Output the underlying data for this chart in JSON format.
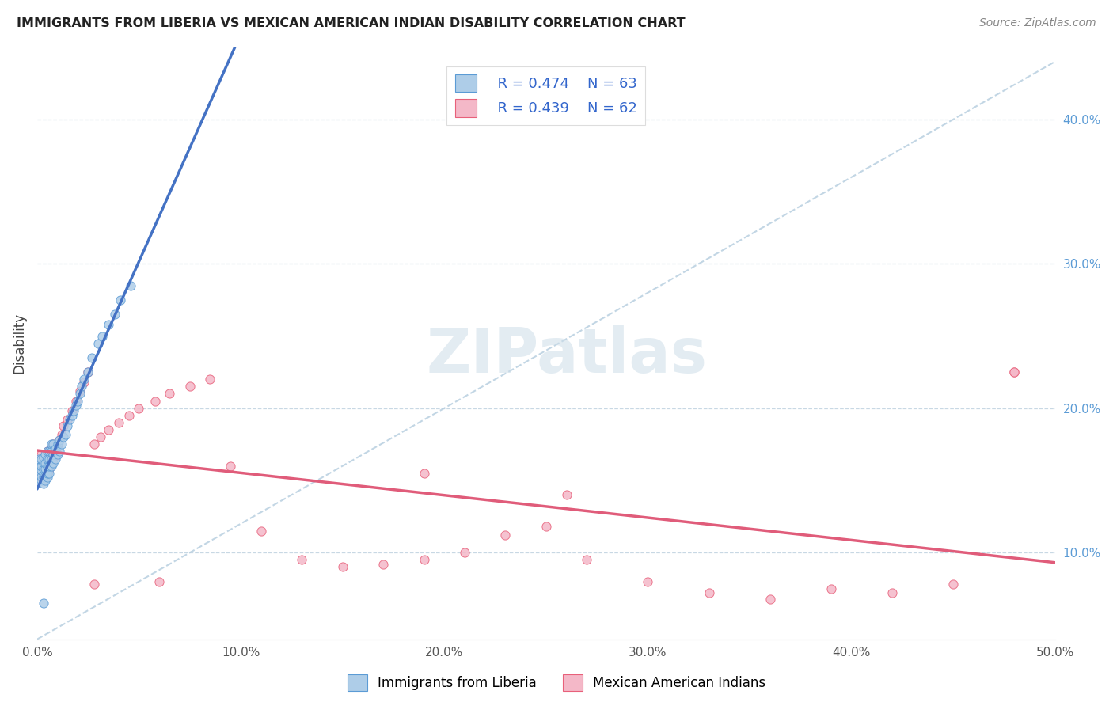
{
  "title": "IMMIGRANTS FROM LIBERIA VS MEXICAN AMERICAN INDIAN DISABILITY CORRELATION CHART",
  "source": "Source: ZipAtlas.com",
  "ylabel": "Disability",
  "xlim": [
    0.0,
    0.5
  ],
  "ylim": [
    0.04,
    0.45
  ],
  "legend_R1": "R = 0.474",
  "legend_N1": "N = 63",
  "legend_R2": "R = 0.439",
  "legend_N2": "N = 62",
  "color_blue_fill": "#aecde8",
  "color_blue_edge": "#5b9bd5",
  "color_pink_fill": "#f4b8c8",
  "color_pink_edge": "#e8607a",
  "color_line_blue": "#4472c4",
  "color_line_pink": "#e05c7a",
  "color_dashed": "#b8cfe0",
  "watermark": "ZIPatlas",
  "blue_x": [
    0.001,
    0.001,
    0.001,
    0.001,
    0.002,
    0.002,
    0.002,
    0.002,
    0.002,
    0.003,
    0.003,
    0.003,
    0.003,
    0.003,
    0.003,
    0.004,
    0.004,
    0.004,
    0.004,
    0.004,
    0.005,
    0.005,
    0.005,
    0.005,
    0.005,
    0.006,
    0.006,
    0.006,
    0.006,
    0.007,
    0.007,
    0.007,
    0.007,
    0.008,
    0.008,
    0.008,
    0.009,
    0.009,
    0.01,
    0.01,
    0.011,
    0.011,
    0.012,
    0.013,
    0.014,
    0.015,
    0.016,
    0.017,
    0.018,
    0.019,
    0.02,
    0.021,
    0.022,
    0.023,
    0.025,
    0.027,
    0.03,
    0.032,
    0.035,
    0.038,
    0.041,
    0.046,
    0.003
  ],
  "blue_y": [
    0.155,
    0.158,
    0.162,
    0.165,
    0.15,
    0.153,
    0.157,
    0.16,
    0.165,
    0.148,
    0.152,
    0.155,
    0.158,
    0.162,
    0.166,
    0.15,
    0.154,
    0.158,
    0.162,
    0.168,
    0.152,
    0.155,
    0.16,
    0.165,
    0.17,
    0.155,
    0.16,
    0.165,
    0.17,
    0.16,
    0.165,
    0.17,
    0.175,
    0.162,
    0.168,
    0.175,
    0.165,
    0.172,
    0.168,
    0.175,
    0.17,
    0.178,
    0.175,
    0.18,
    0.182,
    0.188,
    0.192,
    0.195,
    0.198,
    0.202,
    0.205,
    0.21,
    0.215,
    0.22,
    0.225,
    0.235,
    0.245,
    0.25,
    0.258,
    0.265,
    0.275,
    0.285,
    0.065
  ],
  "pink_x": [
    0.001,
    0.001,
    0.002,
    0.002,
    0.002,
    0.003,
    0.003,
    0.003,
    0.004,
    0.004,
    0.005,
    0.005,
    0.005,
    0.006,
    0.006,
    0.007,
    0.007,
    0.008,
    0.008,
    0.009,
    0.01,
    0.011,
    0.012,
    0.013,
    0.015,
    0.017,
    0.019,
    0.021,
    0.023,
    0.025,
    0.028,
    0.031,
    0.035,
    0.04,
    0.045,
    0.05,
    0.058,
    0.065,
    0.075,
    0.085,
    0.095,
    0.11,
    0.13,
    0.15,
    0.17,
    0.19,
    0.21,
    0.23,
    0.25,
    0.27,
    0.3,
    0.33,
    0.36,
    0.39,
    0.42,
    0.45,
    0.48,
    0.028,
    0.06,
    0.19,
    0.26,
    0.48
  ],
  "pink_y": [
    0.155,
    0.162,
    0.152,
    0.158,
    0.168,
    0.15,
    0.158,
    0.165,
    0.152,
    0.162,
    0.155,
    0.162,
    0.17,
    0.158,
    0.168,
    0.162,
    0.172,
    0.165,
    0.175,
    0.17,
    0.175,
    0.178,
    0.182,
    0.188,
    0.192,
    0.198,
    0.205,
    0.212,
    0.218,
    0.225,
    0.175,
    0.18,
    0.185,
    0.19,
    0.195,
    0.2,
    0.205,
    0.21,
    0.215,
    0.22,
    0.16,
    0.115,
    0.095,
    0.09,
    0.092,
    0.095,
    0.1,
    0.112,
    0.118,
    0.095,
    0.08,
    0.072,
    0.068,
    0.075,
    0.072,
    0.078,
    0.225,
    0.078,
    0.08,
    0.155,
    0.14,
    0.225
  ]
}
